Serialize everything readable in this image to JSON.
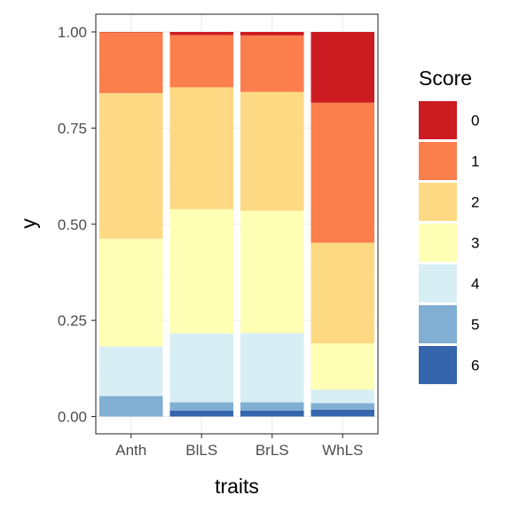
{
  "chart_data": {
    "type": "bar",
    "stacked": true,
    "normalized": true,
    "categories": [
      "Anth",
      "BlLS",
      "BrLS",
      "WhLS"
    ],
    "xlabel": "traits",
    "ylabel": "y",
    "ylim": [
      0,
      1
    ],
    "y_ticks": [
      "0.00",
      "0.25",
      "0.50",
      "0.75",
      "1.00"
    ],
    "grid": true,
    "legend": {
      "title": "Score",
      "position": "right"
    },
    "series": [
      {
        "name": "6",
        "color": "#3565AC",
        "values": [
          0.0,
          0.015,
          0.015,
          0.018
        ]
      },
      {
        "name": "5",
        "color": "#81AFD3",
        "values": [
          0.053,
          0.022,
          0.022,
          0.017
        ]
      },
      {
        "name": "4",
        "color": "#D8EEF5",
        "values": [
          0.129,
          0.179,
          0.18,
          0.035
        ]
      },
      {
        "name": "3",
        "color": "#FEFFB4",
        "values": [
          0.28,
          0.323,
          0.318,
          0.12
        ]
      },
      {
        "name": "2",
        "color": "#FED983",
        "values": [
          0.379,
          0.317,
          0.309,
          0.262
        ]
      },
      {
        "name": "1",
        "color": "#FB7F4D",
        "values": [
          0.158,
          0.136,
          0.147,
          0.364
        ]
      },
      {
        "name": "0",
        "color": "#CC1C21",
        "values": [
          0.001,
          0.008,
          0.009,
          0.184
        ]
      }
    ]
  }
}
